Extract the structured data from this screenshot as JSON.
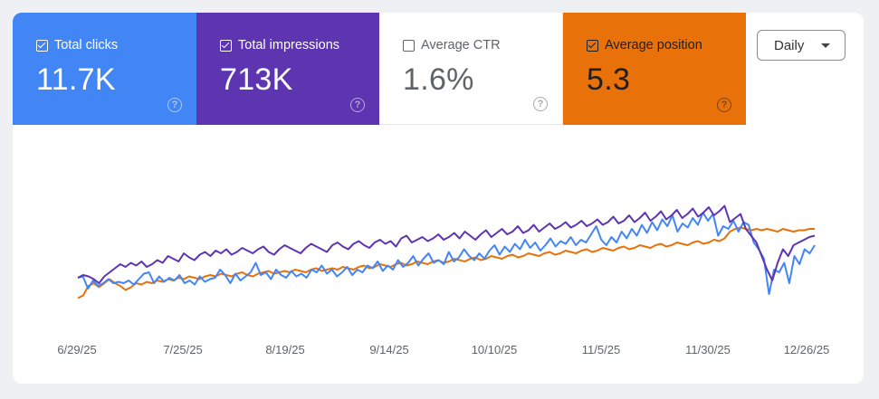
{
  "metrics": [
    {
      "label": "Total clicks",
      "value": "11.7K",
      "checked": true,
      "bg": "#4285f4",
      "fg": "#ffffff"
    },
    {
      "label": "Total impressions",
      "value": "713K",
      "checked": true,
      "bg": "#5e35b1",
      "fg": "#ffffff"
    },
    {
      "label": "Average CTR",
      "value": "1.6%",
      "checked": false,
      "bg": "#ffffff",
      "fg": "#5f6368"
    },
    {
      "label": "Average position",
      "value": "5.3",
      "checked": true,
      "bg": "#e8710a",
      "fg": "#1f1f1f"
    }
  ],
  "period_selector": {
    "label": "Daily"
  },
  "chart_data": {
    "type": "line",
    "xlabel": "",
    "ylabel": "",
    "x_ticks": [
      "6/29/25",
      "7/25/25",
      "8/19/25",
      "9/14/25",
      "10/10/25",
      "11/5/25",
      "11/30/25",
      "12/26/25"
    ],
    "grid": false,
    "series": [
      {
        "metric": "clicks",
        "color": "#4285f4",
        "values": [
          34,
          35,
          26,
          32,
          28,
          30,
          33,
          30,
          31,
          30,
          32,
          29,
          33,
          37,
          38,
          30,
          35,
          31,
          34,
          32,
          36,
          30,
          32,
          29,
          35,
          31,
          33,
          34,
          40,
          36,
          30,
          37,
          32,
          35,
          38,
          45,
          36,
          38,
          33,
          40,
          36,
          34,
          39,
          35,
          37,
          34,
          40,
          38,
          43,
          37,
          40,
          35,
          38,
          42,
          36,
          40,
          38,
          43,
          41,
          46,
          39,
          43,
          40,
          47,
          42,
          45,
          50,
          43,
          48,
          52,
          45,
          47,
          44,
          53,
          46,
          49,
          55,
          50,
          47,
          52,
          48,
          54,
          58,
          51,
          57,
          53,
          59,
          55,
          62,
          56,
          60,
          54,
          58,
          63,
          57,
          61,
          59,
          64,
          58,
          62,
          60,
          66,
          72,
          62,
          58,
          64,
          60,
          68,
          63,
          70,
          65,
          73,
          67,
          75,
          69,
          77,
          72,
          80,
          68,
          74,
          71,
          78,
          73,
          82,
          76,
          81,
          65,
          72,
          70,
          76,
          68,
          75,
          73,
          60,
          55,
          48,
          22,
          40,
          38,
          45,
          30,
          50,
          44,
          55,
          52,
          58
        ]
      },
      {
        "metric": "impressions",
        "color": "#5e35b1",
        "values": [
          34,
          36,
          35,
          33,
          30,
          35,
          38,
          41,
          44,
          42,
          45,
          43,
          46,
          42,
          44,
          47,
          45,
          50,
          48,
          46,
          52,
          49,
          47,
          51,
          53,
          50,
          54,
          52,
          55,
          51,
          53,
          56,
          54,
          52,
          55,
          57,
          53,
          51,
          55,
          58,
          56,
          54,
          52,
          56,
          59,
          57,
          55,
          53,
          58,
          60,
          57,
          55,
          59,
          61,
          58,
          56,
          60,
          62,
          59,
          61,
          57,
          63,
          65,
          60,
          62,
          64,
          61,
          63,
          66,
          62,
          64,
          67,
          63,
          68,
          65,
          62,
          66,
          69,
          64,
          67,
          70,
          66,
          68,
          72,
          67,
          69,
          73,
          68,
          71,
          74,
          70,
          72,
          75,
          71,
          73,
          76,
          72,
          74,
          77,
          73,
          75,
          79,
          74,
          76,
          80,
          75,
          78,
          82,
          76,
          79,
          83,
          77,
          80,
          84,
          78,
          81,
          85,
          79,
          82,
          86,
          80,
          83,
          87,
          75,
          78,
          81,
          70,
          65,
          60,
          50,
          40,
          32,
          45,
          55,
          50,
          58,
          60,
          62,
          64,
          65
        ]
      },
      {
        "metric": "position",
        "color": "#e8710a",
        "values": [
          19,
          21,
          28,
          30,
          27,
          30,
          33,
          30,
          28,
          25,
          27,
          30,
          29,
          31,
          30,
          32,
          31,
          33,
          32,
          34,
          33,
          35,
          34,
          33,
          35,
          36,
          35,
          37,
          36,
          35,
          37,
          38,
          36,
          35,
          37,
          38,
          39,
          37,
          38,
          39,
          38,
          40,
          39,
          38,
          40,
          41,
          39,
          40,
          41,
          40,
          42,
          41,
          40,
          42,
          43,
          41,
          42,
          44,
          43,
          42,
          44,
          45,
          43,
          44,
          46,
          45,
          44,
          46,
          47,
          45,
          46,
          48,
          47,
          46,
          48,
          49,
          47,
          48,
          50,
          49,
          48,
          50,
          51,
          49,
          50,
          52,
          51,
          50,
          52,
          53,
          51,
          52,
          54,
          53,
          52,
          54,
          55,
          53,
          54,
          56,
          55,
          54,
          56,
          57,
          55,
          56,
          58,
          57,
          56,
          58,
          59,
          57,
          58,
          60,
          59,
          58,
          60,
          61,
          59,
          60,
          62,
          61,
          63,
          68,
          70,
          71,
          70,
          69,
          70,
          69,
          70,
          69,
          68,
          70,
          69,
          68,
          69,
          69,
          70,
          70
        ]
      }
    ]
  }
}
